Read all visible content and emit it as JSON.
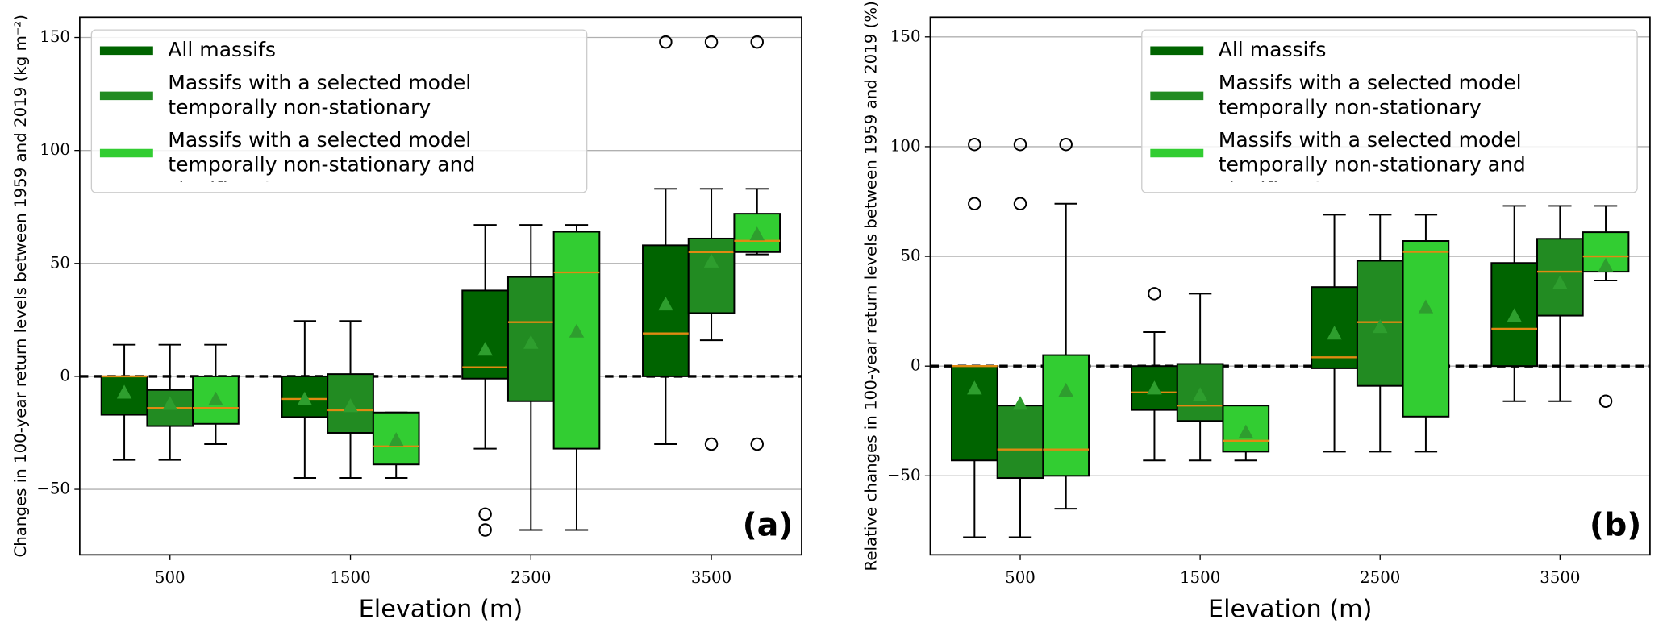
{
  "chart_data": [
    {
      "type": "box",
      "annotation": "(a)",
      "x_label": "Elevation (m)",
      "y_label": "Changes in 100-year return levels between 1959 and 2019 (kg m⁻²)",
      "categories": [
        "500",
        "1500",
        "2500",
        "3500"
      ],
      "ylim": [
        -79,
        159
      ],
      "yticks": [
        {
          "value": -50,
          "label": "−50"
        },
        0,
        50,
        100,
        150
      ],
      "grid": true,
      "hline": 0,
      "legend": "upper left",
      "median_color": "#e08a12",
      "mean_color": "#2e9e2e",
      "series": [
        {
          "name": "All massifs",
          "color": "#006400",
          "boxes": [
            {
              "whislo": -37,
              "q1": -17,
              "med": 0,
              "q3": 0,
              "whishi": 14,
              "mean": -7,
              "fliers": []
            },
            {
              "whislo": -45,
              "q1": -18,
              "med": -10,
              "q3": 0,
              "whishi": 24.5,
              "mean": -10,
              "fliers": []
            },
            {
              "whislo": -32,
              "q1": -1,
              "med": 4,
              "q3": 38,
              "whishi": 67,
              "mean": 12,
              "fliers": [
                -61,
                -68
              ]
            },
            {
              "whislo": -30,
              "q1": 0,
              "med": 19,
              "q3": 58,
              "whishi": 83,
              "mean": 32,
              "fliers": [
                148
              ]
            }
          ]
        },
        {
          "name": "Massifs with a selected model\ntemporally non-stationary",
          "color": "#228b22",
          "boxes": [
            {
              "whislo": -37,
              "q1": -22,
              "med": -14,
              "q3": -6,
              "whishi": 14,
              "mean": -12,
              "fliers": []
            },
            {
              "whislo": -45,
              "q1": -25,
              "med": -15,
              "q3": 1,
              "whishi": 24.5,
              "mean": -13,
              "fliers": []
            },
            {
              "whislo": -68,
              "q1": -11,
              "med": 24,
              "q3": 44,
              "whishi": 67,
              "mean": 15,
              "fliers": []
            },
            {
              "whislo": 16,
              "q1": 28,
              "med": 55,
              "q3": 61,
              "whishi": 83,
              "mean": 51,
              "fliers": [
                148,
                -30
              ]
            }
          ]
        },
        {
          "name": "Massifs with a selected model\ntemporally non-stationary and significant",
          "color": "#32cd32",
          "boxes": [
            {
              "whislo": -30,
              "q1": -21,
              "med": -14,
              "q3": 0,
              "whishi": 14,
              "mean": -10,
              "fliers": []
            },
            {
              "whislo": -45,
              "q1": -39,
              "med": -31,
              "q3": -16,
              "whishi": -16,
              "mean": -28,
              "fliers": []
            },
            {
              "whislo": -68,
              "q1": -32,
              "med": 46,
              "q3": 64,
              "whishi": 67,
              "mean": 20,
              "fliers": []
            },
            {
              "whislo": 54,
              "q1": 55,
              "med": 60,
              "q3": 72,
              "whishi": 83,
              "mean": 63,
              "fliers": [
                148,
                -30
              ]
            }
          ]
        }
      ]
    },
    {
      "type": "box",
      "annotation": "(b)",
      "x_label": "Elevation (m)",
      "y_label": "Relative changes in 100-year return levels between 1959 and 2019 (%)",
      "categories": [
        "500",
        "1500",
        "2500",
        "3500"
      ],
      "ylim": [
        -86,
        159
      ],
      "yticks": [
        {
          "value": -50,
          "label": "−50"
        },
        0,
        50,
        100,
        150
      ],
      "grid": true,
      "hline": 0,
      "legend": "upper right",
      "median_color": "#e08a12",
      "mean_color": "#2e9e2e",
      "series": [
        {
          "name": "All massifs",
          "color": "#006400",
          "boxes": [
            {
              "whislo": -78,
              "q1": -43,
              "med": 0,
              "q3": 0,
              "whishi": 0,
              "mean": -10,
              "fliers": [
                101,
                74
              ]
            },
            {
              "whislo": -43,
              "q1": -20,
              "med": -12,
              "q3": 0,
              "whishi": 15.5,
              "mean": -10,
              "fliers": [
                33
              ]
            },
            {
              "whislo": -39,
              "q1": -1,
              "med": 4,
              "q3": 36,
              "whishi": 69,
              "mean": 15,
              "fliers": []
            },
            {
              "whislo": -16,
              "q1": 0,
              "med": 17,
              "q3": 47,
              "whishi": 73,
              "mean": 23,
              "fliers": []
            }
          ]
        },
        {
          "name": "Massifs with a selected model\ntemporally non-stationary",
          "color": "#228b22",
          "boxes": [
            {
              "whislo": -78,
              "q1": -51,
              "med": -38,
              "q3": -18,
              "whishi": -18,
              "mean": -17,
              "fliers": [
                101,
                74
              ]
            },
            {
              "whislo": -43,
              "q1": -25,
              "med": -18,
              "q3": 1,
              "whishi": 33,
              "mean": -13,
              "fliers": []
            },
            {
              "whislo": -39,
              "q1": -9,
              "med": 20,
              "q3": 48,
              "whishi": 69,
              "mean": 18,
              "fliers": []
            },
            {
              "whislo": -16,
              "q1": 23,
              "med": 43,
              "q3": 58,
              "whishi": 73,
              "mean": 38,
              "fliers": []
            }
          ]
        },
        {
          "name": "Massifs with a selected model\ntemporally non-stationary and significant",
          "color": "#32cd32",
          "boxes": [
            {
              "whislo": -65,
              "q1": -50,
              "med": -38,
              "q3": 5,
              "whishi": 74,
              "mean": -11,
              "fliers": [
                101
              ]
            },
            {
              "whislo": -43,
              "q1": -39,
              "med": -34,
              "q3": -18,
              "whishi": -18,
              "mean": -30,
              "fliers": []
            },
            {
              "whislo": -39,
              "q1": -23,
              "med": 52,
              "q3": 57,
              "whishi": 69,
              "mean": 27,
              "fliers": []
            },
            {
              "whislo": 39,
              "q1": 43,
              "med": 50,
              "q3": 61,
              "whishi": 73,
              "mean": 46,
              "fliers": [
                -16
              ]
            }
          ]
        }
      ]
    }
  ]
}
